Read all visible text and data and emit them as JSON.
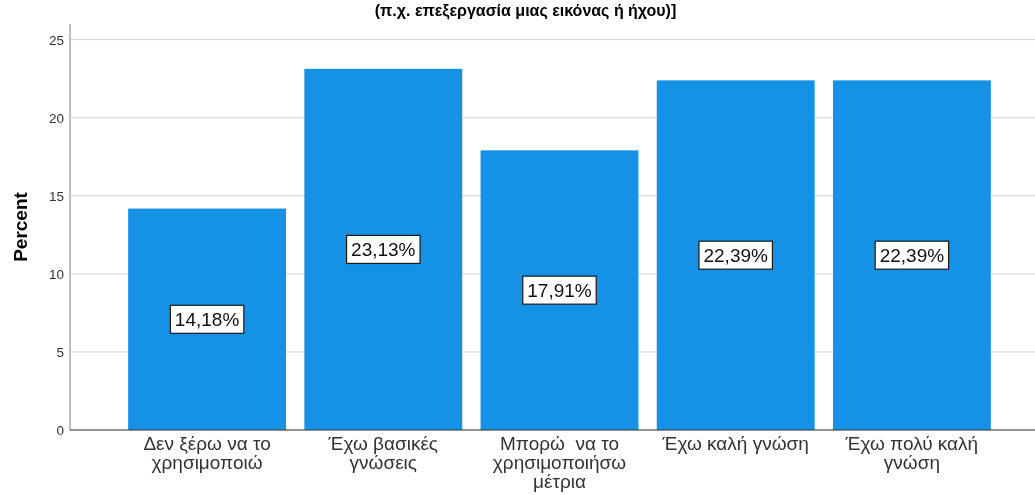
{
  "chart_data": {
    "type": "bar",
    "title": "(π.χ. επεξεργασία μιας εικόνας ή ήχου)]",
    "ylabel": "Percent",
    "categories": [
      "Δεν ξέρω να το χρησιμοποιώ",
      "Έχω βασικές γνώσεις",
      "Μπορώ  να το χρησιμοποιήσω μέτρια",
      "Έχω καλή γνώση",
      "Έχω πολύ καλή γνώση"
    ],
    "values": [
      14.18,
      23.13,
      17.91,
      22.39,
      22.39
    ],
    "value_labels": [
      "14,18%",
      "23,13%",
      "17,91%",
      "22,39%",
      "22,39%"
    ],
    "color": "#1591e5",
    "ylim": [
      0,
      26
    ],
    "yticks": [
      0,
      5,
      10,
      15,
      20,
      25
    ],
    "grid": "y"
  }
}
